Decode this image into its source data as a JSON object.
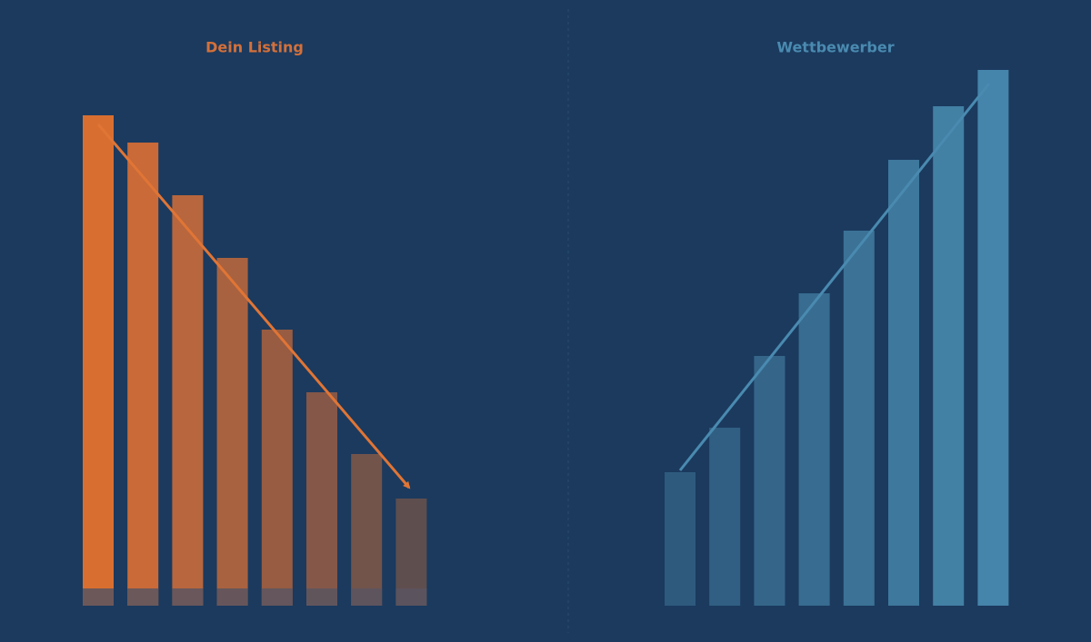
{
  "chart_data": [
    {
      "type": "bar",
      "title": "Dein Listing",
      "values": [
        540,
        510,
        452,
        383,
        304,
        235,
        167,
        118
      ],
      "colors": [
        "#d86f30",
        "#c96a38",
        "#b8663d",
        "#a86240",
        "#975c42",
        "#855748",
        "#72544b",
        "#5f4e4e"
      ],
      "ylim": [
        0,
        600
      ],
      "title_color": "#d4703a"
    },
    {
      "type": "bar",
      "title": "Wettbewerber",
      "values": [
        147,
        196,
        275,
        344,
        413,
        491,
        550,
        590
      ],
      "colors": [
        "#2e5a7e",
        "#315f84",
        "#35668a",
        "#386c90",
        "#3b7296",
        "#3e789c",
        "#4280a4",
        "#4584ab"
      ],
      "ylim": [
        0,
        600
      ],
      "title_color": "#4a8ab0"
    }
  ]
}
